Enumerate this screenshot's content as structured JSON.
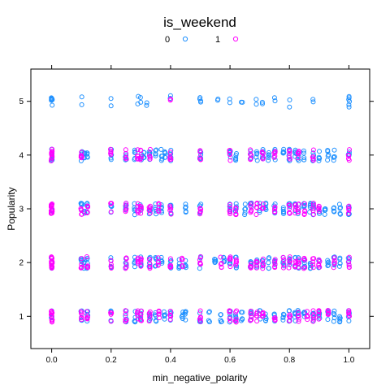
{
  "chart_data": {
    "type": "scatter",
    "title": "is_weekend",
    "xlabel": "min_negative_polarity",
    "ylabel": "Popularity",
    "xlim": [
      -0.07,
      1.07
    ],
    "ylim": [
      0.4,
      5.6
    ],
    "x_ticks": [
      "0.0",
      "0.2",
      "0.4",
      "0.6",
      "0.8",
      "1.0"
    ],
    "y_ticks": [
      "1",
      "2",
      "3",
      "4",
      "5"
    ],
    "jitter": "vertical jitter applied around integer Popularity levels",
    "legend": {
      "placement": "top",
      "entries": [
        {
          "label": "0",
          "color": "#1E90FF"
        },
        {
          "label": "1",
          "color": "#FF00FF"
        }
      ]
    },
    "series": [
      {
        "name": "0",
        "color": "#1E90FF",
        "points": [
          {
            "level": 5,
            "x": [
              0.0,
              0.0,
              0.0,
              0.0,
              0.1,
              0.2,
              0.29,
              0.3,
              0.32,
              0.4,
              0.5,
              0.5,
              0.56,
              0.6,
              0.64,
              0.69,
              0.71,
              0.75,
              0.8,
              0.88,
              1.0,
              1.0,
              1.0
            ]
          },
          {
            "level": 4,
            "x": [
              0.0,
              0.0,
              0.1,
              0.11,
              0.12,
              0.2,
              0.25,
              0.28,
              0.3,
              0.31,
              0.33,
              0.35,
              0.37,
              0.38,
              0.4,
              0.5,
              0.6,
              0.62,
              0.67,
              0.69,
              0.71,
              0.73,
              0.75,
              0.78,
              0.8,
              0.82,
              0.83,
              0.85,
              0.88,
              0.9,
              0.93,
              0.95,
              1.0
            ]
          },
          {
            "level": 3,
            "x": [
              0.0,
              0.1,
              0.11,
              0.12,
              0.2,
              0.25,
              0.28,
              0.3,
              0.33,
              0.35,
              0.37,
              0.4,
              0.45,
              0.5,
              0.6,
              0.62,
              0.65,
              0.67,
              0.7,
              0.72,
              0.75,
              0.78,
              0.8,
              0.82,
              0.83,
              0.85,
              0.87,
              0.88,
              0.9,
              0.92,
              0.95,
              0.97,
              1.0
            ]
          },
          {
            "level": 2,
            "x": [
              0.0,
              0.1,
              0.11,
              0.12,
              0.2,
              0.25,
              0.28,
              0.3,
              0.33,
              0.35,
              0.37,
              0.4,
              0.43,
              0.45,
              0.5,
              0.55,
              0.58,
              0.6,
              0.62,
              0.67,
              0.69,
              0.71,
              0.73,
              0.75,
              0.78,
              0.8,
              0.82,
              0.83,
              0.85,
              0.87,
              0.9,
              0.93,
              0.95,
              0.97,
              1.0
            ]
          },
          {
            "level": 1,
            "x": [
              0.0,
              0.1,
              0.12,
              0.2,
              0.25,
              0.28,
              0.3,
              0.33,
              0.35,
              0.38,
              0.4,
              0.44,
              0.45,
              0.5,
              0.53,
              0.57,
              0.6,
              0.62,
              0.64,
              0.67,
              0.7,
              0.72,
              0.75,
              0.78,
              0.8,
              0.82,
              0.83,
              0.85,
              0.88,
              0.9,
              0.93,
              0.95,
              0.97,
              1.0
            ]
          }
        ]
      },
      {
        "name": "1",
        "color": "#FF00FF",
        "points": [
          {
            "level": 5,
            "x": [
              0.4
            ]
          },
          {
            "level": 4,
            "x": [
              0.0,
              0.0,
              0.0,
              0.1,
              0.2,
              0.25,
              0.29,
              0.3,
              0.33,
              0.4,
              0.5,
              0.6,
              0.67,
              0.71,
              0.75,
              0.8,
              0.83,
              0.88,
              1.0
            ]
          },
          {
            "level": 3,
            "x": [
              0.0,
              0.0,
              0.0,
              0.1,
              0.12,
              0.2,
              0.25,
              0.29,
              0.3,
              0.33,
              0.36,
              0.4,
              0.5,
              0.6,
              0.62,
              0.67,
              0.69,
              0.71,
              0.75,
              0.8,
              0.82,
              0.83,
              0.85,
              0.88,
              0.9,
              1.0
            ]
          },
          {
            "level": 2,
            "x": [
              0.0,
              0.0,
              0.0,
              0.1,
              0.12,
              0.2,
              0.25,
              0.29,
              0.3,
              0.33,
              0.36,
              0.4,
              0.44,
              0.5,
              0.57,
              0.6,
              0.62,
              0.67,
              0.69,
              0.71,
              0.75,
              0.78,
              0.8,
              0.82,
              0.83,
              0.85,
              0.88,
              0.9,
              0.95,
              1.0
            ]
          },
          {
            "level": 1,
            "x": [
              0.0,
              0.0,
              0.0,
              0.1,
              0.12,
              0.2,
              0.25,
              0.29,
              0.3,
              0.33,
              0.36,
              0.4,
              0.5,
              0.6,
              0.62,
              0.67,
              0.69,
              0.71,
              0.75,
              0.8,
              0.83,
              0.86,
              0.88,
              0.9,
              0.93,
              1.0
            ]
          }
        ]
      }
    ]
  }
}
